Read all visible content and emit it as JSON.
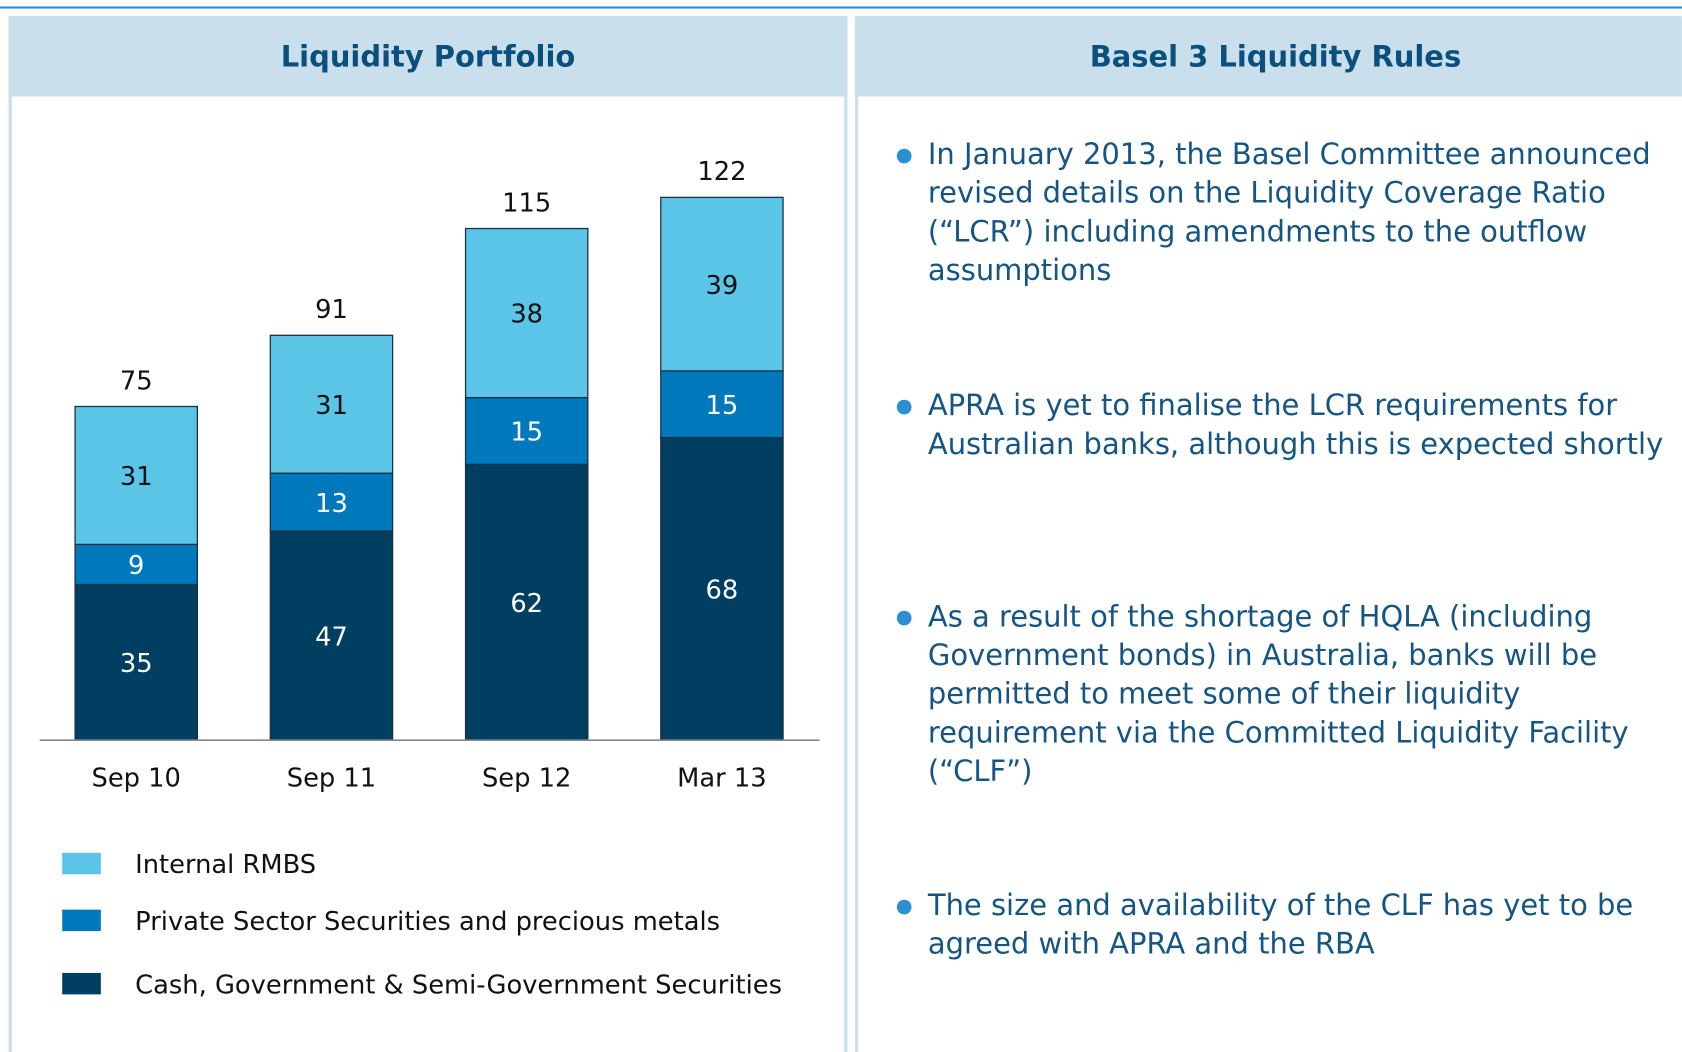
{
  "left_panel": {
    "title": "Liquidity Portfolio"
  },
  "right_panel": {
    "title": "Basel 3 Liquidity Rules",
    "bullets": [
      "In January 2013, the Basel Committee announced revised details on the Liquidity Coverage Ratio (“LCR”) including amendments to the outflow assumptions",
      "APRA is yet to finalise the LCR requirements for Australian banks, although this is expected shortly",
      "As a result of the shortage of HQLA (including Government bonds) in Australia, banks will be permitted to meet some of their liquidity requirement via the Committed Liquidity Facility (“CLF”)",
      "The size and availability of the CLF has yet to be agreed with APRA and the RBA"
    ]
  },
  "chart_data": {
    "type": "stacked_bar",
    "categories": [
      "Sep 10",
      "Sep 11",
      "Sep 12",
      "Mar 13"
    ],
    "series": [
      {
        "name": "Internal RMBS",
        "color": "#5bc5e8",
        "values": [
          31,
          31,
          38,
          39
        ]
      },
      {
        "name": "Private Sector Securities and precious metals",
        "color": "#0079bc",
        "values": [
          9,
          13,
          15,
          15
        ]
      },
      {
        "name": "Cash, Government & Semi-Government Securities",
        "color": "#003f62",
        "values": [
          35,
          47,
          62,
          68
        ]
      }
    ],
    "totals": [
      75,
      91,
      115,
      122
    ]
  }
}
